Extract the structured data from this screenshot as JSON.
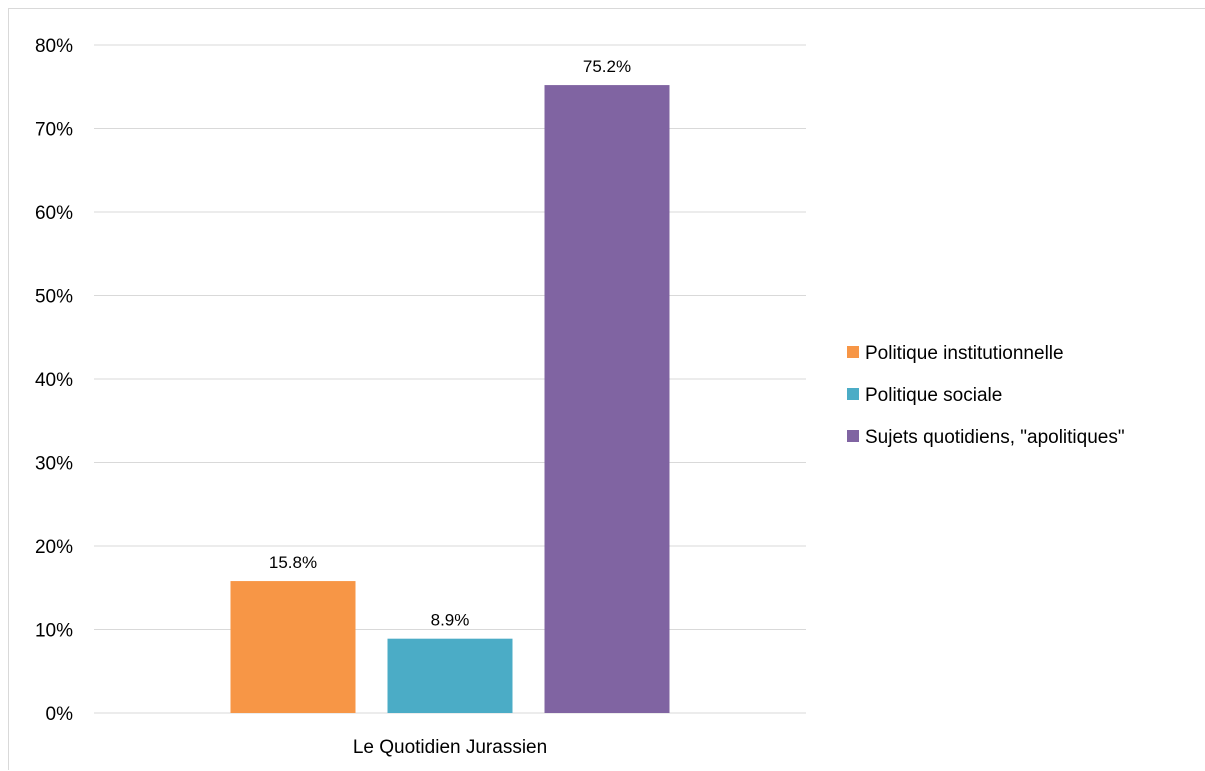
{
  "chart_data": {
    "type": "bar",
    "categories": [
      "Le Quotidien Jurassien"
    ],
    "series": [
      {
        "name": "Politique institutionnelle",
        "values": [
          15.8
        ],
        "color": "#f79646",
        "label": "15.8%"
      },
      {
        "name": "Politique sociale",
        "values": [
          8.9
        ],
        "color": "#4bacc6",
        "label": "8.9%"
      },
      {
        "name": "Sujets quotidiens, \"apolitiques\"",
        "values": [
          75.2
        ],
        "color": "#8064a2",
        "label": "75.2%"
      }
    ],
    "ylim": [
      0,
      80
    ],
    "yticks": [
      0,
      10,
      20,
      30,
      40,
      50,
      60,
      70,
      80
    ],
    "ytick_labels": [
      "0%",
      "10%",
      "20%",
      "30%",
      "40%",
      "50%",
      "60%",
      "70%",
      "80%"
    ],
    "title": "",
    "xlabel": "",
    "ylabel": "",
    "grid": true,
    "legend_position": "right",
    "gridline_color": "#d9d9d9"
  }
}
